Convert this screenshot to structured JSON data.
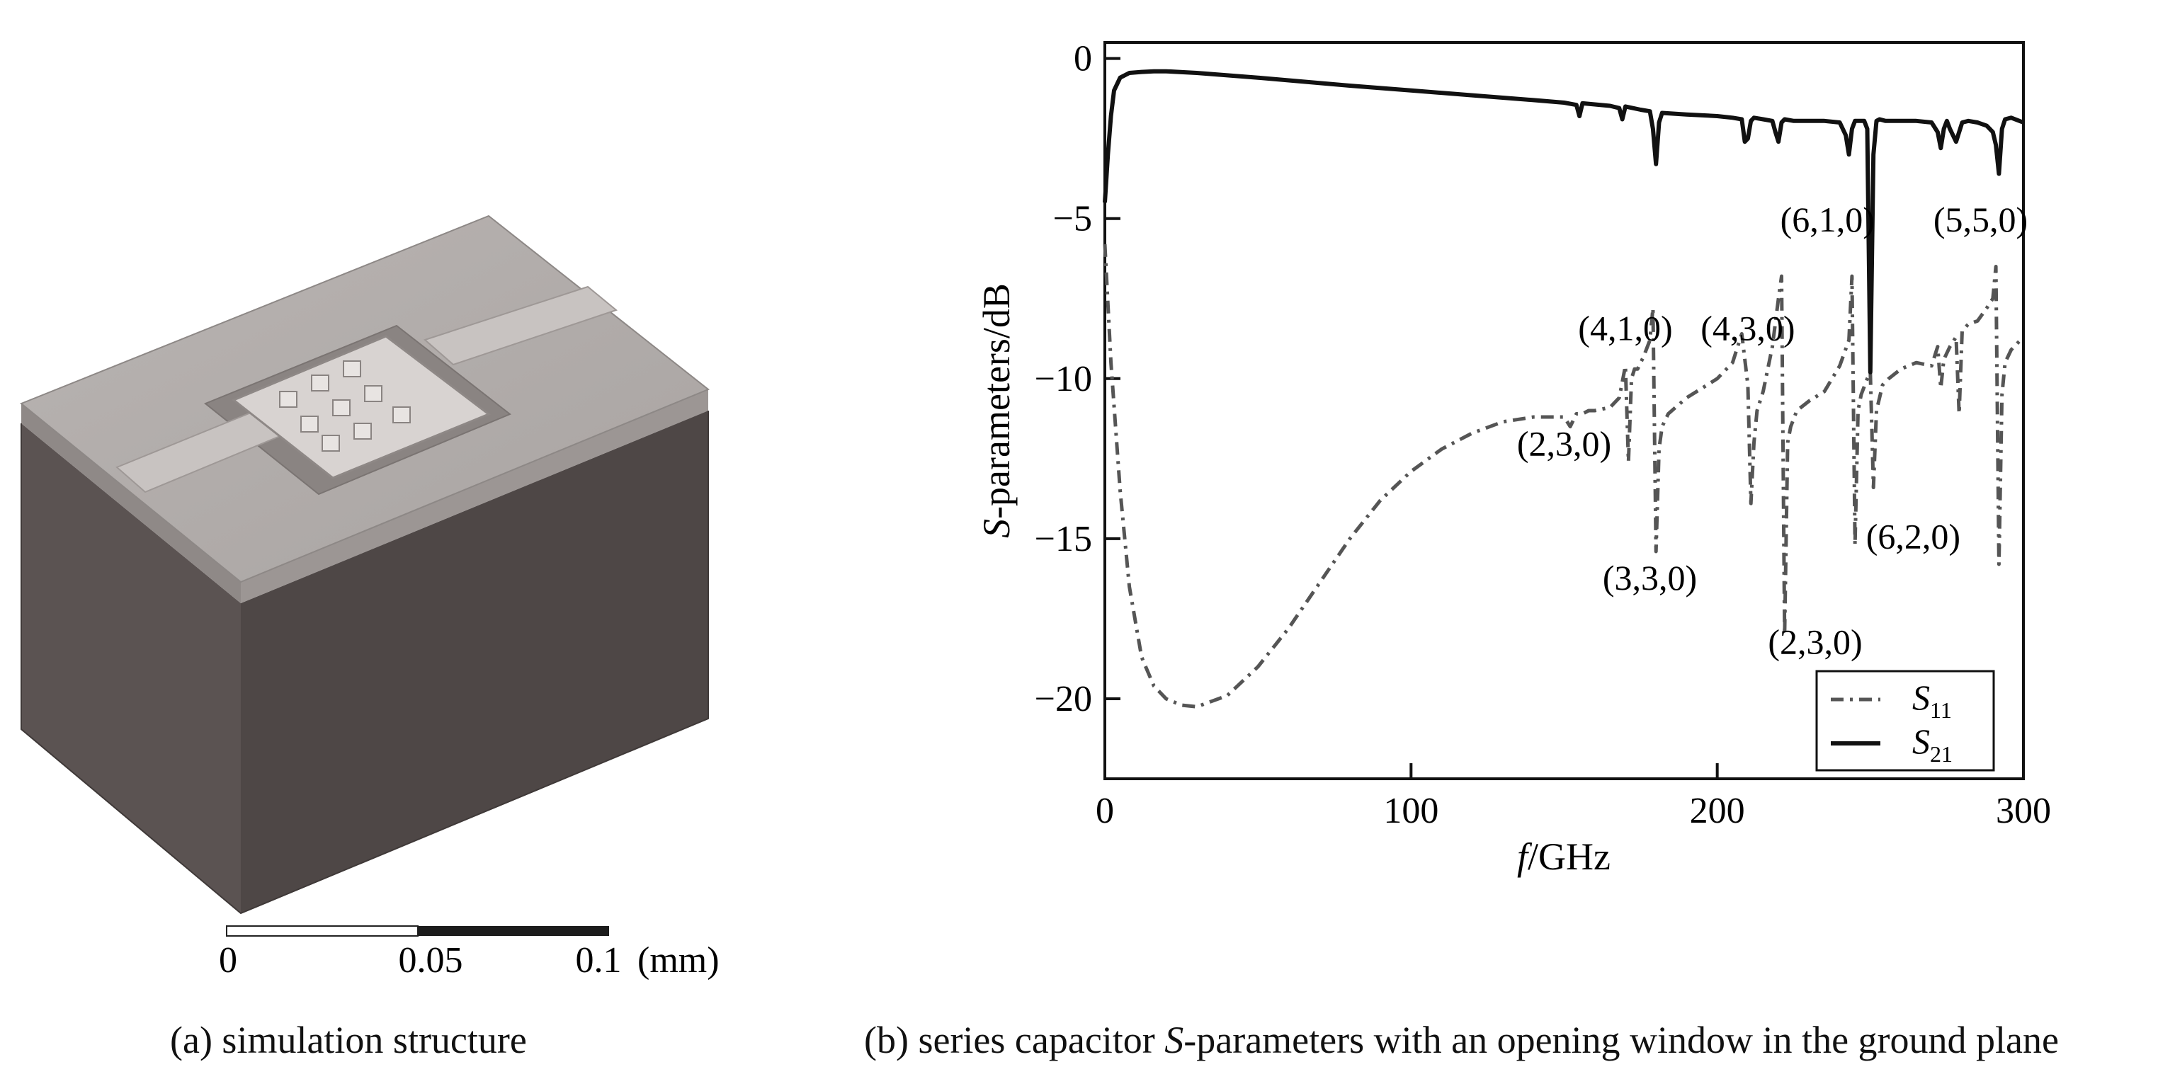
{
  "panel_a": {
    "scale_bar": {
      "tick_0": "0",
      "tick_1": "0.05",
      "tick_2": "0.1",
      "unit": "(mm)"
    },
    "caption": "(a) simulation structure"
  },
  "panel_b": {
    "caption_pre": "(b) series capacitor ",
    "caption_S": "S",
    "caption_post": "-parameters with an opening window in the ground plane"
  },
  "chart_data": {
    "type": "line",
    "xlabel_italic": "f",
    "xlabel_rest": "/GHz",
    "ylabel_italic": "S",
    "ylabel_rest": "-parameters/dB",
    "xlim": [
      0,
      300
    ],
    "ylim": [
      -22.5,
      0.5
    ],
    "xticks": [
      0,
      100,
      200,
      300
    ],
    "xtick_labels": [
      "0",
      "100",
      "200",
      "300"
    ],
    "yticks": [
      0,
      -5,
      -10,
      -15,
      -20
    ],
    "ytick_labels": [
      "0",
      "−5",
      "−10",
      "−15",
      "−20"
    ],
    "grid": false,
    "legend_position": "bottom-right",
    "series": [
      {
        "name": "S11",
        "legend_main": "S",
        "legend_sub": "11",
        "style": "dash-dot",
        "color": "#555555",
        "x": [
          0,
          2,
          5,
          8,
          12,
          16,
          20,
          25,
          30,
          40,
          50,
          60,
          70,
          80,
          90,
          100,
          110,
          120,
          130,
          140,
          150,
          152,
          154,
          156,
          158,
          160,
          165,
          168,
          170,
          171,
          172,
          173,
          174,
          176,
          178,
          179,
          180,
          181,
          182,
          184,
          190,
          200,
          205,
          208,
          210,
          211,
          212,
          213,
          215,
          218,
          220,
          221,
          222,
          223,
          224,
          226,
          230,
          235,
          240,
          243,
          244,
          245,
          246,
          247,
          249,
          250,
          251,
          252,
          253,
          254,
          256,
          260,
          265,
          270,
          272,
          273,
          274,
          276,
          278,
          279,
          280,
          282,
          285,
          288,
          290,
          291,
          292,
          293,
          294,
          296,
          300
        ],
        "values": [
          -5.8,
          -9.5,
          -13.5,
          -16.5,
          -18.7,
          -19.6,
          -20.0,
          -20.2,
          -20.25,
          -19.9,
          -19.0,
          -17.8,
          -16.4,
          -15.0,
          -13.8,
          -12.9,
          -12.2,
          -11.7,
          -11.35,
          -11.2,
          -11.2,
          -11.5,
          -11.1,
          -11.1,
          -11.0,
          -11.0,
          -10.9,
          -10.6,
          -9.6,
          -12.6,
          -10.0,
          -9.7,
          -9.7,
          -9.3,
          -8.8,
          -7.8,
          -15.4,
          -12.2,
          -11.5,
          -11.1,
          -10.6,
          -10.0,
          -9.5,
          -8.6,
          -10.2,
          -13.9,
          -12.0,
          -11.0,
          -10.4,
          -9.0,
          -7.5,
          -6.8,
          -18.0,
          -12.0,
          -11.5,
          -11.0,
          -10.7,
          -10.4,
          -9.6,
          -8.8,
          -6.8,
          -15.2,
          -11.0,
          -10.5,
          -10.0,
          -9.8,
          -13.4,
          -11.0,
          -10.6,
          -10.2,
          -10.0,
          -9.7,
          -9.5,
          -9.6,
          -9.0,
          -10.3,
          -9.4,
          -9.0,
          -8.7,
          -11.1,
          -8.5,
          -8.3,
          -8.2,
          -7.8,
          -7.5,
          -6.5,
          -15.8,
          -10.5,
          -9.5,
          -9.1,
          -8.7
        ]
      },
      {
        "name": "S21",
        "legend_main": "S",
        "legend_sub": "21",
        "style": "solid",
        "color": "#111111",
        "x": [
          0,
          1,
          2,
          3,
          5,
          8,
          12,
          16,
          20,
          30,
          50,
          80,
          100,
          120,
          140,
          150,
          154,
          155,
          156,
          165,
          168,
          169,
          170,
          175,
          178,
          179,
          180,
          181,
          182,
          190,
          200,
          205,
          208,
          209,
          210,
          211,
          212,
          215,
          218,
          219,
          220,
          221,
          222,
          225,
          230,
          235,
          240,
          242,
          243,
          244,
          245,
          246,
          248,
          249,
          250,
          251,
          252,
          253,
          255,
          260,
          265,
          270,
          272,
          273,
          274,
          275,
          276,
          278,
          280,
          282,
          285,
          288,
          290,
          291,
          292,
          293,
          294,
          296,
          300
        ],
        "values": [
          -4.5,
          -3.0,
          -1.8,
          -1.0,
          -0.6,
          -0.45,
          -0.42,
          -0.4,
          -0.4,
          -0.45,
          -0.6,
          -0.85,
          -1.0,
          -1.15,
          -1.3,
          -1.38,
          -1.45,
          -1.8,
          -1.4,
          -1.48,
          -1.55,
          -1.9,
          -1.5,
          -1.6,
          -1.65,
          -2.2,
          -3.3,
          -2.0,
          -1.7,
          -1.75,
          -1.8,
          -1.85,
          -1.9,
          -2.6,
          -2.5,
          -1.95,
          -1.85,
          -1.9,
          -1.95,
          -2.3,
          -2.6,
          -2.0,
          -1.9,
          -1.95,
          -1.95,
          -1.95,
          -2.0,
          -2.4,
          -3.0,
          -2.2,
          -1.95,
          -1.95,
          -1.95,
          -2.2,
          -9.8,
          -3.0,
          -1.95,
          -1.9,
          -1.95,
          -1.95,
          -1.95,
          -2.0,
          -2.3,
          -2.8,
          -2.2,
          -1.95,
          -2.2,
          -2.6,
          -2.0,
          -1.95,
          -2.0,
          -2.1,
          -2.3,
          -2.7,
          -3.6,
          -2.2,
          -1.9,
          -1.85,
          -2.0
        ]
      }
    ],
    "annotations": [
      {
        "text": "(4,1,0)",
        "x": 170,
        "y": -8.8
      },
      {
        "text": "(4,3,0)",
        "x": 210,
        "y": -8.8
      },
      {
        "text": "(2,3,0)",
        "x": 150,
        "y": -12.4
      },
      {
        "text": "(3,3,0)",
        "x": 178,
        "y": -16.6
      },
      {
        "text": "(2,3,0)",
        "x": 232,
        "y": -18.6
      },
      {
        "text": "(6,1,0)",
        "x": 236,
        "y": -5.4
      },
      {
        "text": "(6,2,0)",
        "x": 264,
        "y": -15.3
      },
      {
        "text": "(5,5,0)",
        "x": 286,
        "y": -5.4
      }
    ]
  }
}
